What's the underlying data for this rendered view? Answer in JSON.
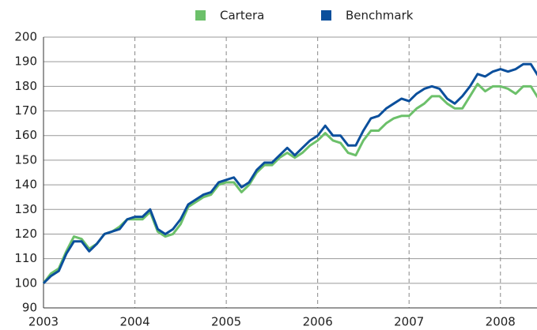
{
  "chart_data": {
    "type": "line",
    "x": [
      2003,
      2003.083,
      2003.167,
      2003.25,
      2003.333,
      2003.417,
      2003.5,
      2003.583,
      2003.667,
      2003.75,
      2003.833,
      2003.917,
      2004,
      2004.083,
      2004.167,
      2004.25,
      2004.333,
      2004.417,
      2004.5,
      2004.583,
      2004.667,
      2004.75,
      2004.833,
      2004.917,
      2005,
      2005.083,
      2005.167,
      2005.25,
      2005.333,
      2005.417,
      2005.5,
      2005.583,
      2005.667,
      2005.75,
      2005.833,
      2005.917,
      2006,
      2006.083,
      2006.167,
      2006.25,
      2006.333,
      2006.417,
      2006.5,
      2006.583,
      2006.667,
      2006.75,
      2006.833,
      2006.917,
      2007,
      2007.083,
      2007.167,
      2007.25,
      2007.333,
      2007.417,
      2007.5,
      2007.583,
      2007.667,
      2007.75,
      2007.833,
      2007.917,
      2008,
      2008.083,
      2008.167,
      2008.25,
      2008.333,
      2008.417
    ],
    "series": [
      {
        "name": "Cartera",
        "color": "#6cc06a",
        "values": [
          100,
          104,
          106,
          113,
          119,
          118,
          114,
          116,
          120,
          121,
          123,
          126,
          126,
          126,
          129,
          121,
          119,
          120,
          124,
          131,
          133,
          135,
          136,
          140,
          141,
          141,
          137,
          140,
          145,
          148,
          148,
          151,
          153,
          151,
          153,
          156,
          158,
          161,
          158,
          157,
          153,
          152,
          158,
          162,
          162,
          165,
          167,
          168,
          168,
          171,
          173,
          176,
          176,
          173,
          171,
          171,
          176,
          181,
          178,
          180,
          180,
          179,
          177,
          180,
          180,
          175
        ]
      },
      {
        "name": "Benchmark",
        "color": "#0b4f9c",
        "values": [
          100,
          103,
          105,
          112,
          117,
          117,
          113,
          116,
          120,
          121,
          122,
          126,
          127,
          127,
          130,
          122,
          120,
          122,
          126,
          132,
          134,
          136,
          137,
          141,
          142,
          143,
          139,
          141,
          146,
          149,
          149,
          152,
          155,
          152,
          155,
          158,
          160,
          164,
          160,
          160,
          156,
          156,
          162,
          167,
          168,
          171,
          173,
          175,
          174,
          177,
          179,
          180,
          179,
          175,
          173,
          176,
          180,
          185,
          184,
          186,
          187,
          186,
          187,
          189,
          189,
          184
        ]
      }
    ],
    "xlim": [
      2003,
      2008.4
    ],
    "xticks": [
      2003,
      2004,
      2005,
      2006,
      2007,
      2008
    ],
    "ylim": [
      90,
      200
    ],
    "yticks": [
      90,
      100,
      110,
      120,
      130,
      140,
      150,
      160,
      170,
      180,
      190,
      200
    ],
    "grid": true,
    "legend": "top"
  }
}
